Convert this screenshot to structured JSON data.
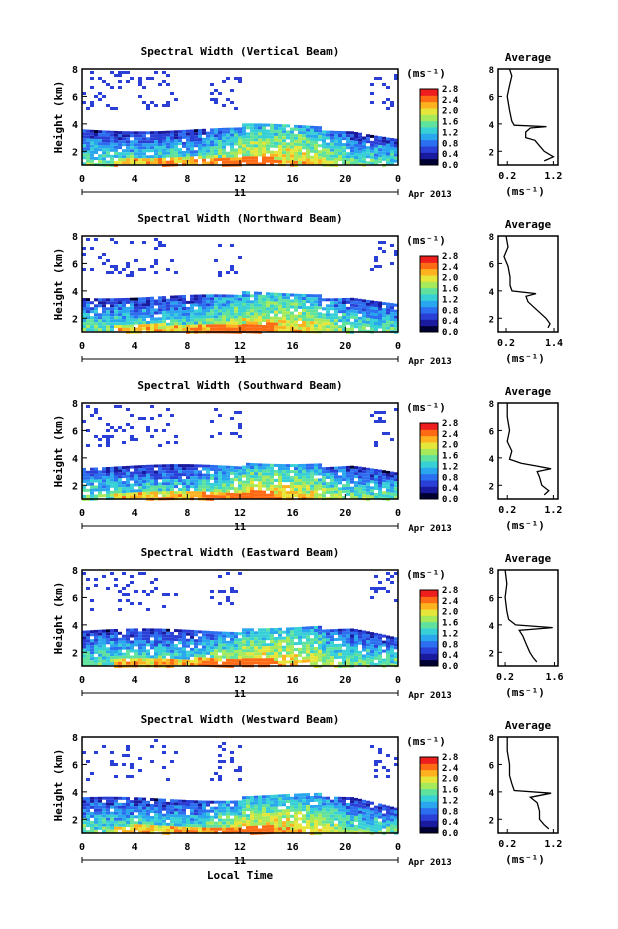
{
  "figure": {
    "xlabel": "Local Time",
    "date_label": "Apr 2013",
    "day_label": "11",
    "cbar_unit": "(ms⁻¹)",
    "avg_title": "Average",
    "avg_xunit": "(ms⁻¹)",
    "ylabel": "Height (km)",
    "x_ticks": [
      "0",
      "4",
      "8",
      "12",
      "16",
      "20",
      "0"
    ],
    "y_ticks": [
      "2",
      "4",
      "6",
      "8"
    ],
    "cbar_ticks": [
      "0.0",
      "0.4",
      "0.8",
      "1.2",
      "1.6",
      "2.0",
      "2.4",
      "2.8"
    ],
    "colormap": [
      "#000033",
      "#1a1a9f",
      "#2a3fd6",
      "#2b6ef0",
      "#2aa6ee",
      "#37d0d6",
      "#5fe29e",
      "#a6ea5c",
      "#e6e63a",
      "#ffb21f",
      "#ff6a14",
      "#ee1e1e"
    ]
  },
  "chart_data": [
    {
      "type": "heatmap",
      "title": "Spectral Width (Vertical Beam)",
      "xlim": [
        0,
        24
      ],
      "ylim": [
        1,
        8
      ],
      "cbar_range": [
        0,
        2.8
      ],
      "cloud_top_km": 3.6,
      "avg_title": "Average",
      "avg_xticks": [
        "0.2",
        "1.2"
      ],
      "avg_xlim": [
        0,
        1.3
      ],
      "average_profile": [
        [
          1.3,
          1.0
        ],
        [
          1.6,
          1.2
        ],
        [
          2.0,
          1.0
        ],
        [
          2.4,
          0.9
        ],
        [
          2.8,
          0.8
        ],
        [
          3.0,
          0.6
        ],
        [
          3.4,
          0.6
        ],
        [
          3.7,
          0.7
        ],
        [
          3.8,
          1.05
        ],
        [
          3.9,
          0.35
        ],
        [
          4.2,
          0.3
        ],
        [
          5.0,
          0.25
        ],
        [
          6.0,
          0.2
        ],
        [
          6.8,
          0.25
        ],
        [
          7.5,
          0.3
        ],
        [
          8.0,
          0.25
        ]
      ]
    },
    {
      "type": "heatmap",
      "title": "Spectral Width (Northward Beam)",
      "xlim": [
        0,
        24
      ],
      "ylim": [
        1,
        8
      ],
      "cbar_range": [
        0,
        2.8
      ],
      "cloud_top_km": 3.6,
      "avg_title": "Average",
      "avg_xticks": [
        "0.2",
        "1.4"
      ],
      "avg_xlim": [
        0,
        1.5
      ],
      "average_profile": [
        [
          1.3,
          1.25
        ],
        [
          1.6,
          1.3
        ],
        [
          2.0,
          1.2
        ],
        [
          2.4,
          1.05
        ],
        [
          2.8,
          0.9
        ],
        [
          3.2,
          0.75
        ],
        [
          3.6,
          0.7
        ],
        [
          3.8,
          0.95
        ],
        [
          4.0,
          0.35
        ],
        [
          4.4,
          0.3
        ],
        [
          5.0,
          0.3
        ],
        [
          5.8,
          0.25
        ],
        [
          6.5,
          0.15
        ],
        [
          7.2,
          0.25
        ],
        [
          8.0,
          0.2
        ]
      ]
    },
    {
      "type": "heatmap",
      "title": "Spectral Width (Southward Beam)",
      "xlim": [
        0,
        24
      ],
      "ylim": [
        1,
        8
      ],
      "cbar_range": [
        0,
        2.8
      ],
      "cloud_top_km": 3.4,
      "avg_title": "Average",
      "avg_xticks": [
        "0.2",
        "1.2"
      ],
      "avg_xlim": [
        0,
        1.3
      ],
      "average_profile": [
        [
          1.3,
          1.0
        ],
        [
          1.6,
          1.1
        ],
        [
          2.0,
          0.95
        ],
        [
          2.6,
          0.9
        ],
        [
          3.0,
          0.85
        ],
        [
          3.2,
          1.15
        ],
        [
          3.4,
          0.85
        ],
        [
          3.6,
          0.5
        ],
        [
          3.9,
          0.25
        ],
        [
          4.5,
          0.3
        ],
        [
          5.2,
          0.2
        ],
        [
          6.0,
          0.25
        ],
        [
          7.0,
          0.2
        ],
        [
          8.0,
          0.2
        ]
      ]
    },
    {
      "type": "heatmap",
      "title": "Spectral Width (Eastward Beam)",
      "xlim": [
        0,
        24
      ],
      "ylim": [
        1,
        8
      ],
      "cbar_range": [
        0,
        2.8
      ],
      "cloud_top_km": 3.6,
      "avg_title": "Average",
      "avg_xticks": [
        "0.2",
        "1.6"
      ],
      "avg_xlim": [
        0,
        1.7
      ],
      "average_profile": [
        [
          1.3,
          1.1
        ],
        [
          1.6,
          1.0
        ],
        [
          2.0,
          0.9
        ],
        [
          2.6,
          0.8
        ],
        [
          3.2,
          0.7
        ],
        [
          3.6,
          0.6
        ],
        [
          3.8,
          1.55
        ],
        [
          4.0,
          0.5
        ],
        [
          4.4,
          0.3
        ],
        [
          5.0,
          0.25
        ],
        [
          6.0,
          0.2
        ],
        [
          7.0,
          0.25
        ],
        [
          8.0,
          0.2
        ]
      ]
    },
    {
      "type": "heatmap",
      "title": "Spectral Width (Westward Beam)",
      "xlim": [
        0,
        24
      ],
      "ylim": [
        1,
        8
      ],
      "cbar_range": [
        0,
        2.8
      ],
      "cloud_top_km": 3.5,
      "avg_title": "Average",
      "avg_xticks": [
        "0.2",
        "1.2"
      ],
      "avg_xlim": [
        0,
        1.3
      ],
      "average_profile": [
        [
          1.3,
          1.1
        ],
        [
          1.6,
          1.0
        ],
        [
          2.0,
          0.9
        ],
        [
          2.6,
          0.9
        ],
        [
          3.2,
          0.85
        ],
        [
          3.6,
          0.7
        ],
        [
          3.9,
          1.15
        ],
        [
          4.1,
          0.35
        ],
        [
          4.6,
          0.3
        ],
        [
          5.2,
          0.25
        ],
        [
          6.0,
          0.25
        ],
        [
          7.0,
          0.2
        ],
        [
          8.0,
          0.2
        ]
      ]
    }
  ]
}
